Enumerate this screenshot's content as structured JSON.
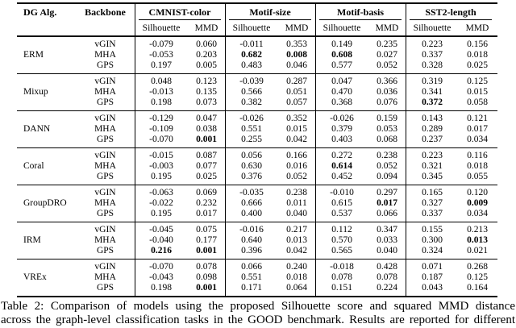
{
  "table": {
    "col1_header": "DG Alg.",
    "col2_header": "Backbone",
    "group_headers": [
      {
        "label": "CMNIST-color"
      },
      {
        "label": "Motif-size"
      },
      {
        "label": "Motif-basis"
      },
      {
        "label": "SST2-length"
      }
    ],
    "subheaders": {
      "silhouette": "Silhouette",
      "mmd": "MMD"
    },
    "blocks": [
      {
        "algorithm": "ERM",
        "rows": [
          {
            "backbone": "vGIN",
            "values": [
              "-0.079",
              "0.060",
              "-0.011",
              "0.353",
              "0.149",
              "0.235",
              "0.223",
              "0.156"
            ],
            "bold": []
          },
          {
            "backbone": "MHA",
            "values": [
              "-0.053",
              "0.203",
              "0.682",
              "0.008",
              "0.608",
              "0.027",
              "0.337",
              "0.018"
            ],
            "bold": [
              2,
              3,
              4
            ]
          },
          {
            "backbone": "GPS",
            "values": [
              "0.197",
              "0.005",
              "0.483",
              "0.046",
              "0.577",
              "0.052",
              "0.328",
              "0.025"
            ],
            "bold": []
          }
        ]
      },
      {
        "algorithm": "Mixup",
        "rows": [
          {
            "backbone": "vGIN",
            "values": [
              "0.048",
              "0.123",
              "-0.039",
              "0.287",
              "0.047",
              "0.366",
              "0.319",
              "0.125"
            ],
            "bold": []
          },
          {
            "backbone": "MHA",
            "values": [
              "-0.013",
              "0.135",
              "0.566",
              "0.051",
              "0.470",
              "0.036",
              "0.341",
              "0.015"
            ],
            "bold": []
          },
          {
            "backbone": "GPS",
            "values": [
              "0.198",
              "0.073",
              "0.382",
              "0.057",
              "0.368",
              "0.076",
              "0.372",
              "0.058"
            ],
            "bold": [
              6
            ]
          }
        ]
      },
      {
        "algorithm": "DANN",
        "rows": [
          {
            "backbone": "vGIN",
            "values": [
              "-0.129",
              "0.047",
              "-0.026",
              "0.352",
              "-0.026",
              "0.159",
              "0.143",
              "0.121"
            ],
            "bold": []
          },
          {
            "backbone": "MHA",
            "values": [
              "-0.109",
              "0.038",
              "0.551",
              "0.015",
              "0.379",
              "0.053",
              "0.289",
              "0.017"
            ],
            "bold": []
          },
          {
            "backbone": "GPS",
            "values": [
              "-0.070",
              "0.001",
              "0.255",
              "0.042",
              "0.403",
              "0.068",
              "0.237",
              "0.034"
            ],
            "bold": [
              1
            ]
          }
        ]
      },
      {
        "algorithm": "Coral",
        "rows": [
          {
            "backbone": "vGIN",
            "values": [
              "-0.015",
              "0.087",
              "0.056",
              "0.166",
              "0.272",
              "0.238",
              "0.223",
              "0.116"
            ],
            "bold": []
          },
          {
            "backbone": "MHA",
            "values": [
              "-0.003",
              "0.077",
              "0.630",
              "0.016",
              "0.614",
              "0.052",
              "0.321",
              "0.018"
            ],
            "bold": [
              4
            ]
          },
          {
            "backbone": "GPS",
            "values": [
              "0.195",
              "0.025",
              "0.376",
              "0.052",
              "0.452",
              "0.094",
              "0.345",
              "0.055"
            ],
            "bold": []
          }
        ]
      },
      {
        "algorithm": "GroupDRO",
        "rows": [
          {
            "backbone": "vGIN",
            "values": [
              "-0.063",
              "0.069",
              "-0.035",
              "0.238",
              "-0.010",
              "0.297",
              "0.165",
              "0.120"
            ],
            "bold": []
          },
          {
            "backbone": "MHA",
            "values": [
              "-0.022",
              "0.232",
              "0.666",
              "0.011",
              "0.615",
              "0.017",
              "0.327",
              "0.009"
            ],
            "bold": [
              5,
              7
            ]
          },
          {
            "backbone": "GPS",
            "values": [
              "0.195",
              "0.017",
              "0.400",
              "0.040",
              "0.537",
              "0.066",
              "0.337",
              "0.034"
            ],
            "bold": []
          }
        ]
      },
      {
        "algorithm": "IRM",
        "rows": [
          {
            "backbone": "vGIN",
            "values": [
              "-0.045",
              "0.075",
              "-0.016",
              "0.217",
              "0.112",
              "0.347",
              "0.155",
              "0.213"
            ],
            "bold": []
          },
          {
            "backbone": "MHA",
            "values": [
              "-0.040",
              "0.177",
              "0.640",
              "0.013",
              "0.570",
              "0.033",
              "0.300",
              "0.013"
            ],
            "bold": [
              7
            ]
          },
          {
            "backbone": "GPS",
            "values": [
              "0.216",
              "0.001",
              "0.396",
              "0.042",
              "0.565",
              "0.040",
              "0.324",
              "0.021"
            ],
            "bold": [
              0,
              1
            ]
          }
        ]
      },
      {
        "algorithm": "VREx",
        "rows": [
          {
            "backbone": "vGIN",
            "values": [
              "-0.070",
              "0.078",
              "0.066",
              "0.240",
              "-0.018",
              "0.428",
              "0.071",
              "0.268"
            ],
            "bold": []
          },
          {
            "backbone": "MHA",
            "values": [
              "-0.043",
              "0.098",
              "0.551",
              "0.018",
              "0.078",
              "0.078",
              "0.187",
              "0.125"
            ],
            "bold": []
          },
          {
            "backbone": "GPS",
            "values": [
              "0.198",
              "0.001",
              "0.171",
              "0.064",
              "0.151",
              "0.224",
              "0.043",
              "0.164"
            ],
            "bold": [
              1
            ]
          }
        ]
      }
    ]
  },
  "caption": {
    "line1": "Table 2: Comparison of models using the proposed Silhouette score and squared MMD distance",
    "line2": "across the graph-level classification tasks in the GOOD benchmark. Results are reported for different"
  }
}
